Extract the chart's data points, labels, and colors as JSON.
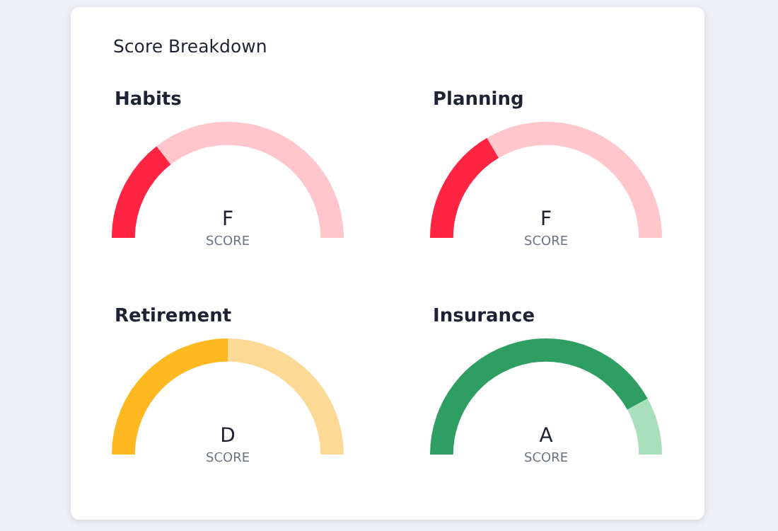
{
  "chart_data": [
    {
      "type": "other",
      "title": "Score Breakdown"
    },
    {
      "type": "donut",
      "title": "Habits",
      "categories": [
        null,
        null
      ],
      "values": [
        29,
        71
      ],
      "colors": [
        "#ff2442",
        "#ffc6cc"
      ],
      "annotations": [
        "F",
        "SCORE"
      ]
    },
    {
      "type": "donut",
      "title": "Planning",
      "categories": [
        null,
        null
      ],
      "values": [
        33,
        67
      ],
      "colors": [
        "#ff2442",
        "#ffc6cc"
      ],
      "annotations": [
        "F",
        "SCORE"
      ]
    },
    {
      "type": "donut",
      "title": "Retirement",
      "categories": [
        null,
        null
      ],
      "values": [
        50,
        50
      ],
      "colors": [
        "#feb820",
        "#fcd995"
      ],
      "annotations": [
        "D",
        "SCORE"
      ]
    },
    {
      "type": "donut",
      "title": "Insurance",
      "categories": [
        null,
        null
      ],
      "values": [
        84,
        16
      ],
      "colors": [
        "#2e9e62",
        "#a9dfbc"
      ],
      "annotations": [
        "A",
        "SCORE"
      ]
    }
  ]
}
